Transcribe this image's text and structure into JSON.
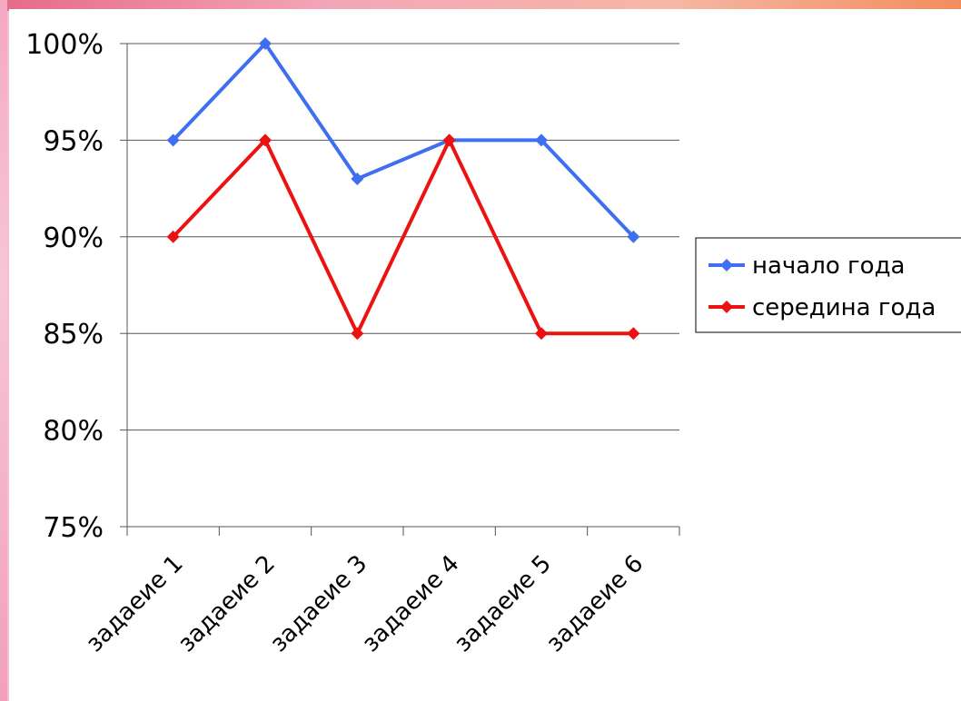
{
  "chart_data": {
    "type": "line",
    "categories": [
      "задаеие 1",
      "задаеие 2",
      "задаеие 3",
      "задаеие 4",
      "задаеие 5",
      "задаеие 6"
    ],
    "series": [
      {
        "name": "начало года",
        "values": [
          95,
          100,
          93,
          95,
          95,
          90
        ],
        "color": "#3e6ff0"
      },
      {
        "name": "середина года",
        "values": [
          90,
          95,
          85,
          95,
          85,
          85
        ],
        "color": "#ee1111"
      }
    ],
    "y_ticks": [
      "75%",
      "80%",
      "85%",
      "90%",
      "95%",
      "100%"
    ],
    "ylim": [
      75,
      100
    ],
    "grid": true,
    "legend_position": "right",
    "title": "",
    "xlabel": "",
    "ylabel": ""
  }
}
